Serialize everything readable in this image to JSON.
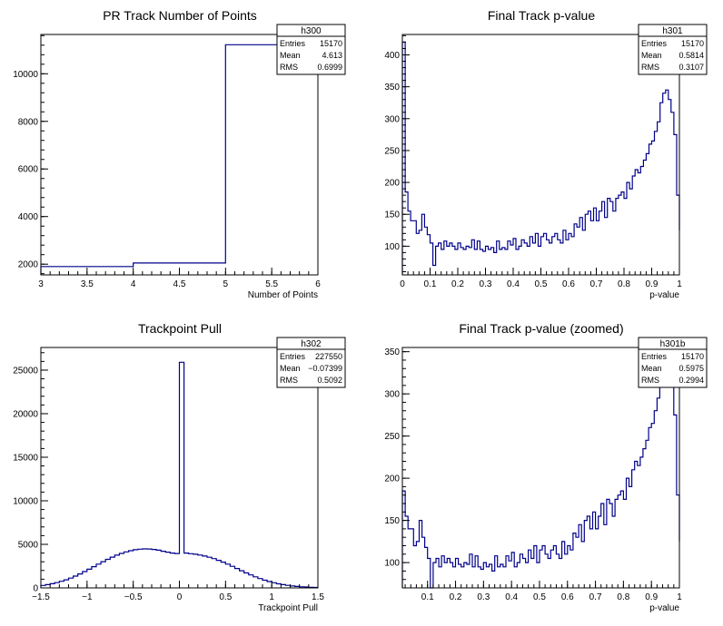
{
  "colors": {
    "line": "#00008b",
    "frame": "#000000"
  },
  "chart_data": [
    {
      "id": "h300",
      "type": "step",
      "title": "PR Track Number of Points",
      "xlabel": "Number of Points",
      "ylabel": "",
      "xlim": [
        3,
        6
      ],
      "ylim": [
        1550,
        11650
      ],
      "x_ticks": [
        3,
        3.5,
        4,
        4.5,
        5,
        5.5,
        6
      ],
      "x_tick_labels": [
        "3",
        "3.5",
        "4",
        "4.5",
        "5",
        "5.5",
        "6"
      ],
      "y_ticks": [
        2000,
        4000,
        6000,
        8000,
        10000
      ],
      "y_tick_labels": [
        "2000",
        "4000",
        "6000",
        "8000",
        "10000"
      ],
      "bins": {
        "start": 3,
        "width": 1,
        "values": [
          1900,
          2050,
          11220
        ]
      },
      "stats": {
        "name": "h300",
        "rows": [
          {
            "label": "Entries",
            "value": "15170"
          },
          {
            "label": "Mean",
            "value": "4.613"
          },
          {
            "label": "RMS",
            "value": "0.6999"
          }
        ]
      },
      "grid": false
    },
    {
      "id": "h301",
      "type": "step",
      "title": "Final Track p-value",
      "xlabel": "p-value",
      "ylabel": "",
      "xlim": [
        0,
        1
      ],
      "ylim": [
        55,
        432
      ],
      "x_ticks": [
        0,
        0.1,
        0.2,
        0.3,
        0.4,
        0.5,
        0.6,
        0.7,
        0.8,
        0.9,
        1
      ],
      "x_tick_labels": [
        "0",
        "0.1",
        "0.2",
        "0.3",
        "0.4",
        "0.5",
        "0.6",
        "0.7",
        "0.8",
        "0.9",
        "1"
      ],
      "y_ticks": [
        100,
        150,
        200,
        250,
        300,
        350,
        400
      ],
      "y_tick_labels": [
        "100",
        "150",
        "200",
        "250",
        "300",
        "350",
        "400"
      ],
      "bins": {
        "start": 0,
        "width": 0.01,
        "values": [
          420,
          185,
          155,
          140,
          140,
          120,
          125,
          150,
          130,
          118,
          105,
          70,
          100,
          105,
          95,
          108,
          100,
          105,
          100,
          95,
          105,
          98,
          95,
          100,
          98,
          110,
          95,
          108,
          95,
          92,
          100,
          95,
          98,
          90,
          108,
          95,
          98,
          95,
          108,
          102,
          112,
          95,
          100,
          110,
          105,
          100,
          115,
          105,
          120,
          100,
          115,
          120,
          110,
          105,
          115,
          120,
          110,
          105,
          125,
          110,
          120,
          115,
          135,
          130,
          145,
          125,
          150,
          155,
          140,
          160,
          140,
          155,
          170,
          145,
          175,
          170,
          155,
          175,
          180,
          185,
          175,
          200,
          190,
          210,
          220,
          215,
          225,
          235,
          245,
          260,
          265,
          280,
          295,
          325,
          340,
          345,
          330,
          310,
          275,
          180,
          125
        ]
      },
      "stats": {
        "name": "h301",
        "rows": [
          {
            "label": "Entries",
            "value": "15170"
          },
          {
            "label": "Mean",
            "value": "0.5814"
          },
          {
            "label": "RMS",
            "value": "0.3107"
          }
        ]
      },
      "grid": false
    },
    {
      "id": "h302",
      "type": "step",
      "title": "Trackpoint Pull",
      "xlabel": "Trackpoint Pull",
      "ylabel": "",
      "xlim": [
        -1.5,
        1.5
      ],
      "ylim": [
        0,
        27600
      ],
      "x_ticks": [
        -1.5,
        -1,
        -0.5,
        0,
        0.5,
        1,
        1.5
      ],
      "x_tick_labels": [
        "−1.5",
        "−1",
        "−0.5",
        "0",
        "0.5",
        "1",
        "1.5"
      ],
      "y_ticks": [
        0,
        5000,
        10000,
        15000,
        20000,
        25000
      ],
      "y_tick_labels": [
        "0",
        "5000",
        "10000",
        "15000",
        "20000",
        "25000"
      ],
      "bins": {
        "start": -1.5,
        "width": 0.05,
        "values": [
          280,
          370,
          480,
          600,
          760,
          930,
          1130,
          1350,
          1600,
          1870,
          2150,
          2440,
          2730,
          3010,
          3280,
          3530,
          3760,
          3960,
          4130,
          4270,
          4380,
          4450,
          4480,
          4470,
          4420,
          4330,
          4210,
          4100,
          4000,
          3950,
          25900,
          4000,
          3930,
          3860,
          3770,
          3660,
          3520,
          3360,
          3170,
          2960,
          2730,
          2480,
          2230,
          1970,
          1720,
          1490,
          1270,
          1070,
          890,
          730,
          590,
          470,
          370,
          290,
          220,
          170,
          130,
          100,
          75,
          55
        ]
      },
      "stats": {
        "name": "h302",
        "rows": [
          {
            "label": "Entries",
            "value": "227550"
          },
          {
            "label": "Mean",
            "value": "−0.07399"
          },
          {
            "label": "RMS",
            "value": "0.5092"
          }
        ]
      },
      "grid": false
    },
    {
      "id": "h301b",
      "type": "step",
      "title": "Final Track p-value (zoomed)",
      "xlabel": "p-value",
      "ylabel": "",
      "xlim": [
        0.01,
        1
      ],
      "ylim": [
        70,
        355
      ],
      "x_ticks": [
        0.1,
        0.2,
        0.3,
        0.4,
        0.5,
        0.6,
        0.7,
        0.8,
        0.9,
        1
      ],
      "x_tick_labels": [
        "0.1",
        "0.2",
        "0.3",
        "0.4",
        "0.5",
        "0.6",
        "0.7",
        "0.8",
        "0.9",
        "1"
      ],
      "y_ticks": [
        100,
        150,
        200,
        250,
        300,
        350
      ],
      "y_tick_labels": [
        "100",
        "150",
        "200",
        "250",
        "300",
        "350"
      ],
      "bins": {
        "start": 0.01,
        "width": 0.01,
        "values": [
          185,
          155,
          140,
          140,
          120,
          125,
          150,
          130,
          118,
          105,
          70,
          100,
          105,
          95,
          108,
          100,
          105,
          100,
          95,
          105,
          98,
          95,
          100,
          98,
          110,
          95,
          108,
          95,
          92,
          100,
          95,
          98,
          90,
          108,
          95,
          98,
          95,
          108,
          102,
          112,
          95,
          100,
          110,
          105,
          100,
          115,
          105,
          120,
          100,
          115,
          120,
          110,
          105,
          115,
          120,
          110,
          105,
          125,
          110,
          120,
          115,
          135,
          130,
          145,
          125,
          150,
          155,
          140,
          160,
          140,
          155,
          170,
          145,
          175,
          170,
          155,
          175,
          180,
          185,
          175,
          200,
          190,
          210,
          220,
          215,
          225,
          235,
          245,
          260,
          265,
          280,
          295,
          325,
          340,
          345,
          330,
          310,
          275,
          180,
          125
        ]
      },
      "stats": {
        "name": "h301b",
        "rows": [
          {
            "label": "Entries",
            "value": "15170"
          },
          {
            "label": "Mean",
            "value": "0.5975"
          },
          {
            "label": "RMS",
            "value": "0.2994"
          }
        ]
      },
      "grid": false
    }
  ]
}
